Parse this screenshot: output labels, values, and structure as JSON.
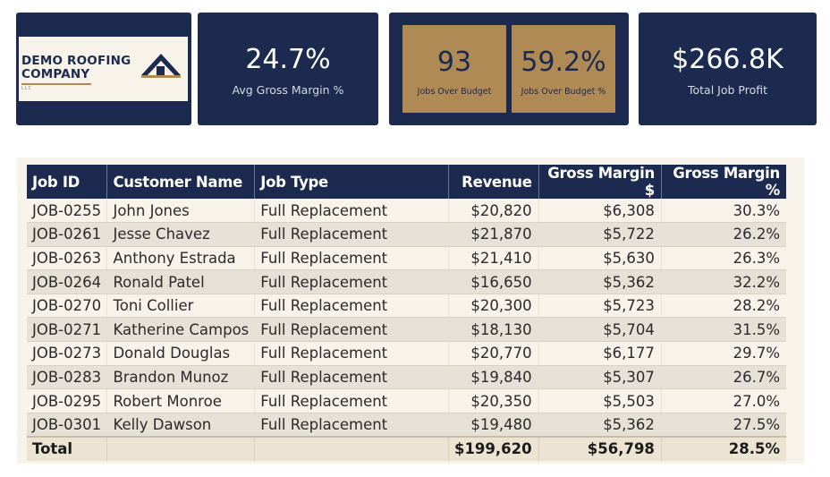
{
  "logo": {
    "line1": "DEMO ROOFING",
    "line2": "COMPANY",
    "sub": "LLC",
    "icon": "house-icon"
  },
  "kpis": {
    "avg_gross_margin": {
      "value": "24.7%",
      "label": "Avg Gross Margin %"
    },
    "jobs_over_budget": {
      "value": "93",
      "label": "Jobs Over Budget"
    },
    "jobs_over_budget_pct": {
      "value": "59.2%",
      "label": "Jobs Over Budget %"
    },
    "total_job_profit": {
      "value": "$266.8K",
      "label": "Total Job Profit"
    }
  },
  "colors": {
    "navy": "#1b2a4e",
    "gold": "#b08a55",
    "cream": "#f7f3ea"
  },
  "table": {
    "headers": {
      "job_id": "Job ID",
      "customer_name": "Customer Name",
      "job_type": "Job Type",
      "revenue": "Revenue",
      "gross_margin_usd": "Gross Margin $",
      "gross_margin_pct": "Gross Margin %"
    },
    "rows": [
      {
        "job_id": "JOB-0255",
        "customer": "John Jones",
        "type": "Full Replacement",
        "revenue": "$20,820",
        "gm": "$6,308",
        "gm_pct": "30.3%"
      },
      {
        "job_id": "JOB-0261",
        "customer": "Jesse Chavez",
        "type": "Full Replacement",
        "revenue": "$21,870",
        "gm": "$5,722",
        "gm_pct": "26.2%"
      },
      {
        "job_id": "JOB-0263",
        "customer": "Anthony Estrada",
        "type": "Full Replacement",
        "revenue": "$21,410",
        "gm": "$5,630",
        "gm_pct": "26.3%"
      },
      {
        "job_id": "JOB-0264",
        "customer": "Ronald Patel",
        "type": "Full Replacement",
        "revenue": "$16,650",
        "gm": "$5,362",
        "gm_pct": "32.2%"
      },
      {
        "job_id": "JOB-0270",
        "customer": "Toni Collier",
        "type": "Full Replacement",
        "revenue": "$20,300",
        "gm": "$5,723",
        "gm_pct": "28.2%"
      },
      {
        "job_id": "JOB-0271",
        "customer": "Katherine Campos",
        "type": "Full Replacement",
        "revenue": "$18,130",
        "gm": "$5,704",
        "gm_pct": "31.5%"
      },
      {
        "job_id": "JOB-0273",
        "customer": "Donald Douglas",
        "type": "Full Replacement",
        "revenue": "$20,770",
        "gm": "$6,177",
        "gm_pct": "29.7%"
      },
      {
        "job_id": "JOB-0283",
        "customer": "Brandon Munoz",
        "type": "Full Replacement",
        "revenue": "$19,840",
        "gm": "$5,307",
        "gm_pct": "26.7%"
      },
      {
        "job_id": "JOB-0295",
        "customer": "Robert Monroe",
        "type": "Full Replacement",
        "revenue": "$20,350",
        "gm": "$5,503",
        "gm_pct": "27.0%"
      },
      {
        "job_id": "JOB-0301",
        "customer": "Kelly Dawson",
        "type": "Full Replacement",
        "revenue": "$19,480",
        "gm": "$5,362",
        "gm_pct": "27.5%"
      }
    ],
    "total": {
      "label": "Total",
      "revenue": "$199,620",
      "gm": "$56,798",
      "gm_pct": "28.5%"
    }
  }
}
